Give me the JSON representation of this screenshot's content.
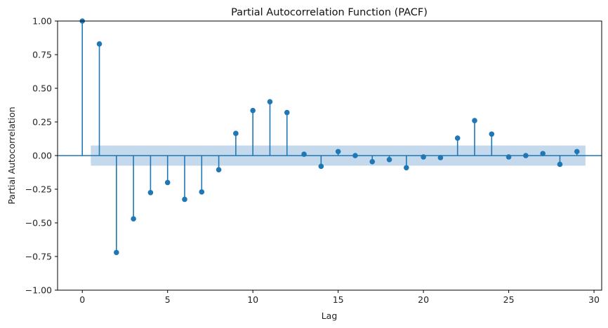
{
  "chart_data": {
    "type": "stem",
    "title": "Partial Autocorrelation Function (PACF)",
    "xlabel": "Lag",
    "ylabel": "Partial Autocorrelation",
    "xlim": [
      -1.45,
      30.45
    ],
    "ylim": [
      -1.0,
      1.0
    ],
    "xticks": [
      0,
      5,
      10,
      15,
      20,
      25,
      30
    ],
    "yticks": [
      -1.0,
      -0.75,
      -0.5,
      -0.25,
      0.0,
      0.25,
      0.5,
      0.75,
      1.0
    ],
    "ytick_labels": [
      "−1.00",
      "−0.75",
      "−0.50",
      "−0.25",
      "0.00",
      "0.25",
      "0.50",
      "0.75",
      "1.00"
    ],
    "grid": false,
    "colors": {
      "stem": "#1f77b4",
      "confidence_band": "#c5d9ec"
    },
    "confidence_band": {
      "x_range": [
        0.5,
        29.5
      ],
      "lower": -0.075,
      "upper": 0.075
    },
    "lags": [
      0,
      1,
      2,
      3,
      4,
      5,
      6,
      7,
      8,
      9,
      10,
      11,
      12,
      13,
      14,
      15,
      16,
      17,
      18,
      19,
      20,
      21,
      22,
      23,
      24,
      25,
      26,
      27,
      28,
      29
    ],
    "values": [
      1.0,
      0.83,
      -0.72,
      -0.47,
      -0.275,
      -0.2,
      -0.325,
      -0.27,
      -0.105,
      0.165,
      0.335,
      0.4,
      0.32,
      0.01,
      -0.08,
      0.03,
      0.0,
      -0.045,
      -0.03,
      -0.09,
      -0.01,
      -0.015,
      0.13,
      0.26,
      0.16,
      -0.01,
      0.0,
      0.015,
      -0.065,
      0.03
    ]
  }
}
